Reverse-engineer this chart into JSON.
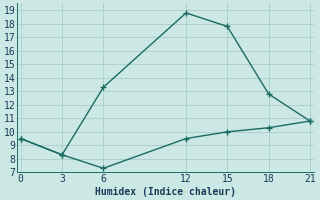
{
  "xlabel": "Humidex (Indice chaleur)",
  "background_color": "#cce8e4",
  "grid_color": "#aacccc",
  "line_color": "#1a6b64",
  "upper_x": [
    0,
    3,
    6,
    12,
    15,
    18,
    21
  ],
  "upper_y": [
    9.5,
    8.3,
    13.3,
    18.8,
    17.8,
    12.8,
    10.8
  ],
  "lower_x": [
    0,
    3,
    6,
    12,
    15,
    18,
    21
  ],
  "lower_y": [
    9.5,
    8.3,
    7.3,
    9.5,
    10.0,
    10.3,
    10.8
  ],
  "xlim": [
    -0.3,
    21.3
  ],
  "ylim": [
    7,
    19.5
  ],
  "yticks": [
    7,
    8,
    9,
    10,
    11,
    12,
    13,
    14,
    15,
    16,
    17,
    18,
    19
  ],
  "xticks": [
    0,
    3,
    6,
    12,
    15,
    18,
    21
  ],
  "markersize": 3,
  "linewidth": 1.0,
  "font_color": "#1a3a5a",
  "fontsize_label": 7,
  "fontsize_tick": 7
}
